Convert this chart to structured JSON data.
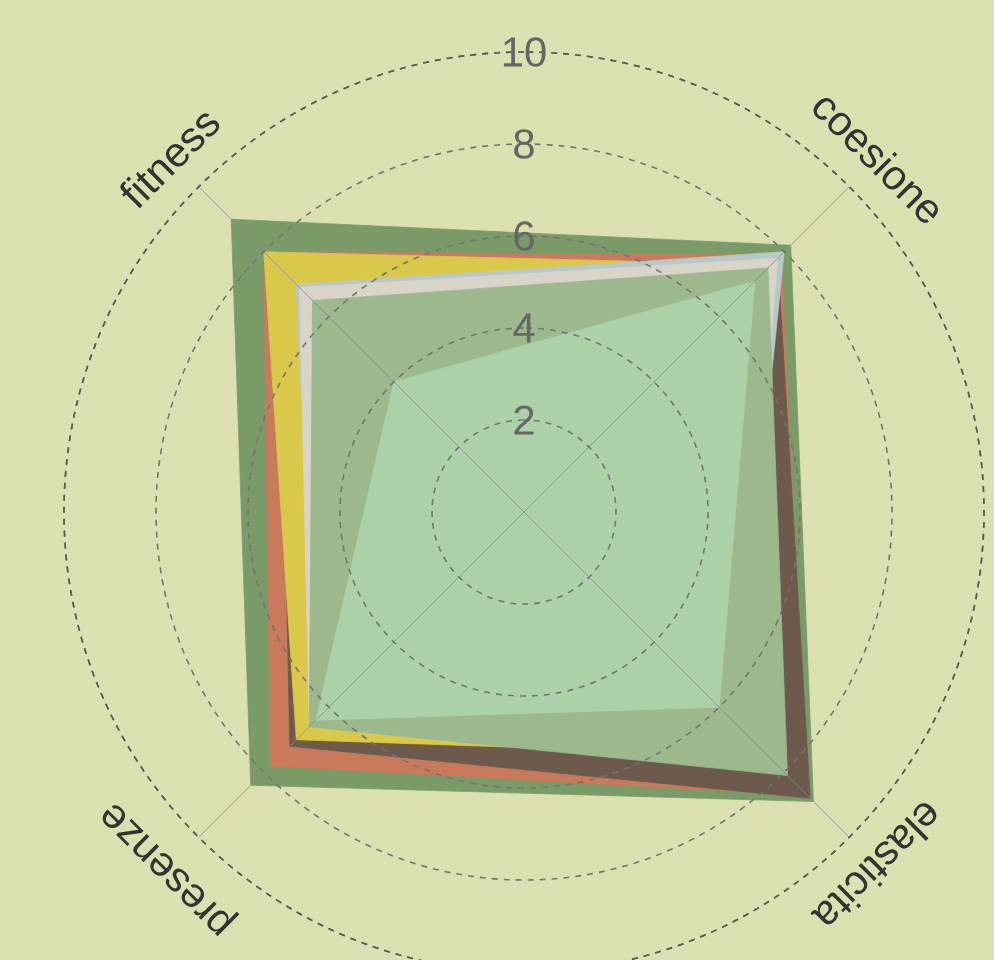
{
  "chart_data": {
    "type": "radar",
    "categories": [
      "coesione",
      "elasticita",
      "presenze",
      "fitness"
    ],
    "ylim": [
      0,
      10
    ],
    "yticks": [
      2,
      4,
      6,
      8,
      10
    ],
    "grid": true,
    "series": [
      {
        "color": "#7a9a68",
        "values": [
          8.2,
          8.9,
          8.4,
          9.0
        ]
      },
      {
        "color": "#c97a5a",
        "values": [
          7.9,
          8.7,
          7.8,
          8.0
        ]
      },
      {
        "color": "#6e5a4c",
        "values": [
          7.8,
          8.8,
          7.2,
          7.5
        ]
      },
      {
        "color": "#d9c84a",
        "values": [
          7.6,
          7.5,
          7.0,
          8.0
        ]
      },
      {
        "color": "#b8c8c8",
        "values": [
          8.0,
          6.5,
          6.4,
          7.0
        ]
      },
      {
        "color": "#d8d4c8",
        "values": [
          7.8,
          6.6,
          6.6,
          6.9
        ]
      },
      {
        "color": "#9cb88c",
        "values": [
          7.5,
          8.1,
          6.6,
          6.5
        ]
      },
      {
        "color": "#acd0a8",
        "values": [
          7.1,
          6.0,
          6.4,
          4.0
        ]
      }
    ]
  }
}
